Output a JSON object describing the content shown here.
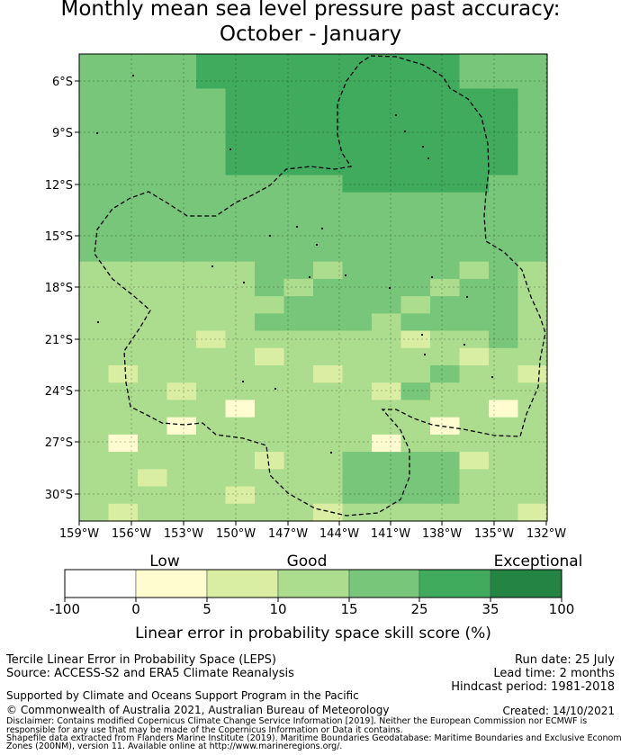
{
  "title_line1": "Monthly mean sea level pressure past accuracy:",
  "title_line2": "October - January",
  "map": {
    "lat_labels": [
      "6°S",
      "9°S",
      "12°S",
      "15°S",
      "18°S",
      "21°S",
      "24°S",
      "27°S",
      "30°S"
    ],
    "lon_labels": [
      "159°W",
      "156°W",
      "153°W",
      "150°W",
      "147°W",
      "144°W",
      "141°W",
      "138°W",
      "135°W",
      "132°W"
    ]
  },
  "legend": {
    "category_labels": [
      "Low",
      "Good",
      "Exceptional"
    ],
    "tick_labels": [
      "-100",
      "0",
      "5",
      "10",
      "15",
      "25",
      "35",
      "100"
    ],
    "colors": [
      "#ffffff",
      "#fffdd0",
      "#d9eea2",
      "#acdc8e",
      "#78c679",
      "#41ab5d",
      "#238443"
    ],
    "label": "Linear error in probability space skill score (%)"
  },
  "footer": {
    "product": "Tercile Linear Error in Probability Space (LEPS)",
    "source": "Source: ACCESS-S2 and ERA5 Climate Reanalysis",
    "run_date": "Run date: 25 July",
    "lead_time": "Lead time: 2 months",
    "hindcast": "Hindcast period: 1981-2018",
    "support": "Supported by Climate and Oceans Support Program in the Pacific",
    "copyright": "© Commonwealth of Australia 2021, Australian Bureau of Meteorology",
    "created": "Created: 14/10/2021",
    "disclaimer1": "Disclaimer: Contains modified Copernicus Climate Change Service Information [2019]. Neither the European Commission nor ECMWF is",
    "disclaimer2": "responsible for any use that may be made of the Copernicus Information or Data it contains.",
    "disclaimer3": "Shapefile data extracted from Flanders Marine Institute (2019). Maritime Boundaries Geodatabase: Maritime Boundaries and Exclusive Economic",
    "disclaimer4": "Zones (200NM), version 11. Available online at http://www.marineregions.org/."
  }
}
